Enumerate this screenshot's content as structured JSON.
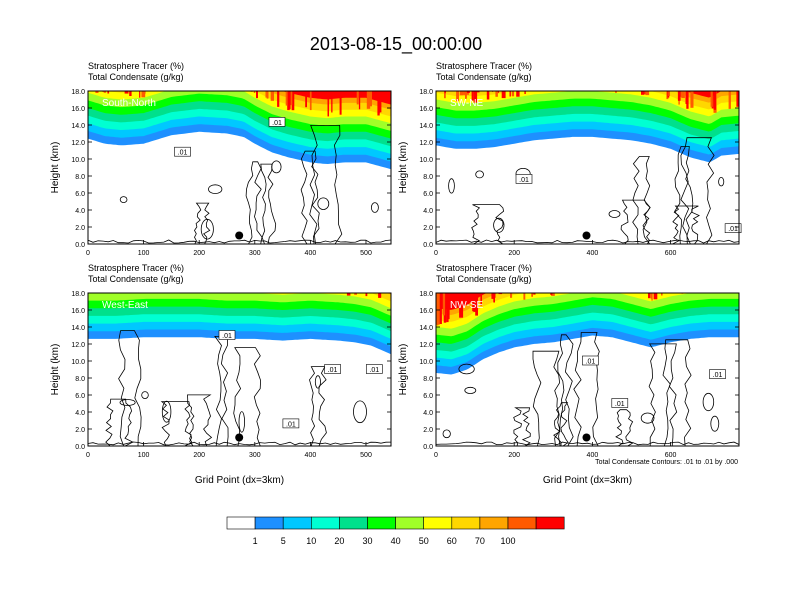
{
  "figure_title": "2013-08-15_00:00:00",
  "note": "Total Condensate Contours: .01 to .01 by .000",
  "colors": {
    "levels": [
      "#ffffff",
      "#1e90ff",
      "#00c8ff",
      "#00ffd2",
      "#00e08c",
      "#00ff00",
      "#a0ff28",
      "#ffff00",
      "#ffd700",
      "#ffa500",
      "#ff5a00",
      "#ff0000"
    ],
    "contour": "#000000",
    "marker": "#000000"
  },
  "colorbar": {
    "labels": [
      "1",
      "5",
      "10",
      "20",
      "30",
      "40",
      "50",
      "60",
      "70",
      "100"
    ]
  },
  "chart_data": [
    {
      "type": "heatmap",
      "name": "South-North",
      "panel_label": "South-North",
      "subtitle_line1": "Stratosphere Tracer   (%)",
      "subtitle_line2": "Total Condensate   (g/kg)",
      "ylabel": "Height (km)",
      "xlabel": "",
      "xlim": [
        0,
        545
      ],
      "ylim": [
        0,
        18
      ],
      "xticks": [
        "0",
        "100",
        "200",
        "300",
        "400",
        "500"
      ],
      "xtick_values": [
        0,
        100,
        200,
        300,
        400,
        500
      ],
      "yticks": [
        "0.0",
        "2.0",
        "4.0",
        "6.0",
        "8.0",
        "10.0",
        "12.0",
        "14.0",
        "16.0",
        "18.0"
      ],
      "tracer_base_km": {
        "x": [
          0,
          30,
          60,
          100,
          150,
          200,
          250,
          280,
          300,
          330,
          360,
          400,
          430,
          460,
          500,
          545
        ],
        "y": [
          12.4,
          11.8,
          11.6,
          11.8,
          12.8,
          13.2,
          13.0,
          12.6,
          11.8,
          10.8,
          10.2,
          9.6,
          9.4,
          9.6,
          9.6,
          8.8
        ]
      },
      "contour_labels": [
        {
          "text": ".01",
          "x": 340,
          "y": 14.3
        },
        {
          "text": ".01",
          "x": 170,
          "y": 10.8
        }
      ],
      "marker_x": 272,
      "marker_y": 1.0
    },
    {
      "type": "heatmap",
      "name": "SW-NE",
      "panel_label": "SW-NE",
      "subtitle_line1": "Stratosphere Tracer   (%)",
      "subtitle_line2": "Total Condensate   (g/kg)",
      "ylabel": "Height (km)",
      "xlabel": "",
      "xlim": [
        0,
        775
      ],
      "ylim": [
        0,
        18
      ],
      "xticks": [
        "0",
        "200",
        "400",
        "600"
      ],
      "xtick_values": [
        0,
        200,
        400,
        600
      ],
      "yticks": [
        "0.0",
        "2.0",
        "4.0",
        "6.0",
        "8.0",
        "10.0",
        "12.0",
        "14.0",
        "16.0",
        "18.0"
      ],
      "tracer_base_km": {
        "x": [
          0,
          50,
          100,
          150,
          200,
          250,
          300,
          350,
          400,
          450,
          500,
          550,
          600,
          650,
          700,
          730,
          775
        ],
        "y": [
          11.6,
          11.2,
          11.2,
          11.4,
          11.8,
          12.2,
          12.4,
          12.6,
          12.6,
          12.4,
          12.2,
          11.8,
          11.2,
          10.2,
          9.6,
          10.4,
          10.6
        ]
      },
      "contour_labels": [
        {
          "text": ".01",
          "x": 225,
          "y": 7.6
        },
        {
          "text": ".01",
          "x": 760,
          "y": 1.8
        }
      ],
      "marker_x": 385,
      "marker_y": 1.0
    },
    {
      "type": "heatmap",
      "name": "West-East",
      "panel_label": "West-East",
      "subtitle_line1": "Stratosphere Tracer   (%)",
      "subtitle_line2": "Total Condensate   (g/kg)",
      "ylabel": "Height (km)",
      "xlabel": "Grid Point (dx=3km)",
      "xlim": [
        0,
        545
      ],
      "ylim": [
        0,
        18
      ],
      "xticks": [
        "0",
        "100",
        "200",
        "300",
        "400",
        "500"
      ],
      "xtick_values": [
        0,
        100,
        200,
        300,
        400,
        500
      ],
      "yticks": [
        "0.0",
        "2.0",
        "4.0",
        "6.0",
        "8.0",
        "10.0",
        "12.0",
        "14.0",
        "16.0",
        "18.0"
      ],
      "tracer_base_km": {
        "x": [
          0,
          50,
          100,
          150,
          200,
          250,
          300,
          350,
          400,
          450,
          480,
          510,
          545
        ],
        "y": [
          12.6,
          12.6,
          12.8,
          12.8,
          12.8,
          12.6,
          12.6,
          12.4,
          12.6,
          12.4,
          12.2,
          11.8,
          10.8
        ]
      },
      "contour_labels": [
        {
          "text": ".01",
          "x": 250,
          "y": 13.0
        },
        {
          "text": ".01",
          "x": 440,
          "y": 9.0
        },
        {
          "text": ".01",
          "x": 515,
          "y": 9.0
        },
        {
          "text": ".01",
          "x": 365,
          "y": 2.6
        }
      ],
      "marker_x": 272,
      "marker_y": 1.0
    },
    {
      "type": "heatmap",
      "name": "NW-SE",
      "panel_label": "NW-SE",
      "subtitle_line1": "Stratosphere Tracer   (%)",
      "subtitle_line2": "Total Condensate   (g/kg)",
      "ylabel": "Height (km)",
      "xlabel": "Grid Point (dx=3km)",
      "xlim": [
        0,
        775
      ],
      "ylim": [
        0,
        18
      ],
      "xticks": [
        "0",
        "200",
        "400",
        "600"
      ],
      "xtick_values": [
        0,
        200,
        400,
        600
      ],
      "yticks": [
        "0.0",
        "2.0",
        "4.0",
        "6.0",
        "8.0",
        "10.0",
        "12.0",
        "14.0",
        "16.0",
        "18.0"
      ],
      "tracer_base_km": {
        "x": [
          0,
          40,
          80,
          120,
          160,
          200,
          250,
          300,
          350,
          400,
          450,
          500,
          550,
          600,
          650,
          700,
          775
        ],
        "y": [
          8.6,
          8.4,
          9.0,
          10.2,
          11.0,
          11.6,
          12.0,
          12.2,
          12.6,
          13.0,
          12.8,
          12.2,
          11.6,
          12.2,
          12.6,
          12.8,
          12.8
        ]
      },
      "contour_labels": [
        {
          "text": ".01",
          "x": 395,
          "y": 10.0
        },
        {
          "text": ".01",
          "x": 470,
          "y": 5.0
        },
        {
          "text": ".01",
          "x": 720,
          "y": 8.4
        }
      ],
      "marker_x": 385,
      "marker_y": 1.0
    }
  ]
}
